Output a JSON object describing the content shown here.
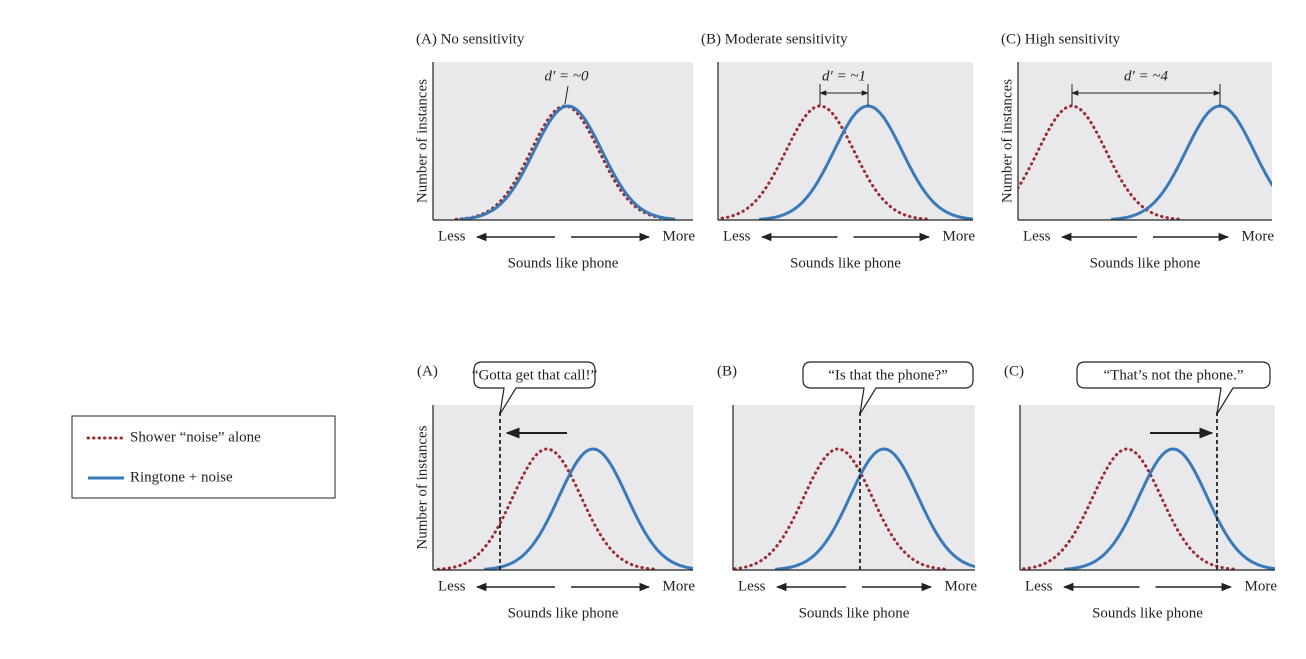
{
  "top_panels": [
    {
      "title": "(A)  No sensitivity",
      "annotation": "d′ = ~0"
    },
    {
      "title": "(B)  Moderate sensitivity",
      "annotation": "d′ = ~1"
    },
    {
      "title": "(C)  High sensitivity",
      "annotation": "d′ = ~4"
    }
  ],
  "bottom_panels": [
    {
      "label": "(A)",
      "callout": "“Gotta get that call!”"
    },
    {
      "label": "(B)",
      "callout": "“Is that the phone?”"
    },
    {
      "label": "(C)",
      "callout": "“That’s not the phone.”"
    }
  ],
  "y_axis_label": "Number of instances",
  "x_axis_label": "Sounds like phone",
  "axis_less": "Less",
  "axis_more": "More",
  "legend": {
    "items": [
      {
        "label": "Shower “noise” alone"
      },
      {
        "label": "Ringtone + noise"
      }
    ]
  }
}
